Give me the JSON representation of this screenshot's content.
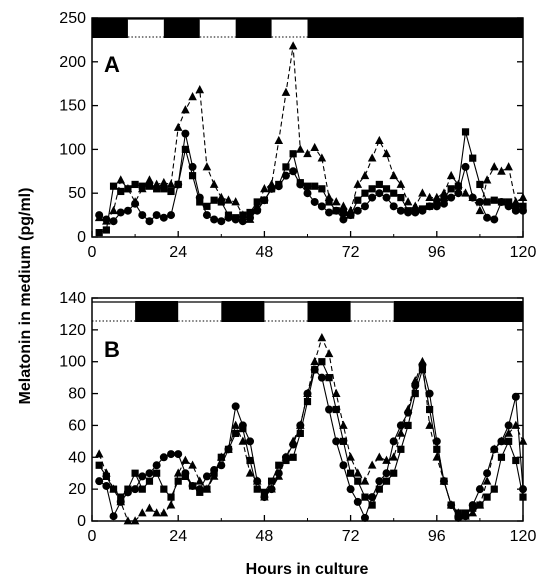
{
  "figure": {
    "ylabel": "Melatonin in medium (pg/ml)",
    "xlabel": "Hours in culture"
  },
  "chart_data": [
    {
      "type": "line",
      "panel": "A",
      "xlim": [
        0,
        120
      ],
      "ylim": [
        0,
        250
      ],
      "x_ticks": [
        0,
        24,
        48,
        72,
        96,
        120
      ],
      "y_ticks": [
        0,
        50,
        100,
        150,
        200,
        250
      ],
      "light_dark_bar": [
        {
          "from": 0,
          "to": 10,
          "state": "dark"
        },
        {
          "from": 10,
          "to": 20,
          "state": "light"
        },
        {
          "from": 20,
          "to": 30,
          "state": "dark"
        },
        {
          "from": 30,
          "to": 40,
          "state": "light"
        },
        {
          "from": 40,
          "to": 50,
          "state": "dark"
        },
        {
          "from": 50,
          "to": 60,
          "state": "light"
        },
        {
          "from": 60,
          "to": 120,
          "state": "dark"
        }
      ],
      "series": [
        {
          "marker": "triangle",
          "dash": true,
          "x": [
            2,
            4,
            6,
            8,
            10,
            12,
            14,
            16,
            18,
            20,
            22,
            24,
            26,
            28,
            30,
            32,
            34,
            36,
            38,
            40,
            42,
            44,
            46,
            48,
            50,
            52,
            54,
            56,
            58,
            60,
            62,
            64,
            66,
            68,
            70,
            72,
            74,
            76,
            78,
            80,
            82,
            84,
            86,
            88,
            90,
            92,
            94,
            96,
            98,
            100,
            102,
            104,
            106,
            108,
            110,
            112,
            114,
            116,
            118,
            120
          ],
          "y": [
            22,
            18,
            30,
            65,
            55,
            40,
            55,
            65,
            60,
            62,
            60,
            125,
            145,
            160,
            168,
            80,
            60,
            45,
            42,
            40,
            25,
            20,
            35,
            55,
            60,
            110,
            165,
            218,
            100,
            95,
            102,
            90,
            45,
            40,
            35,
            30,
            60,
            70,
            90,
            110,
            95,
            70,
            60,
            40,
            35,
            50,
            45,
            45,
            50,
            70,
            60,
            50,
            45,
            30,
            65,
            80,
            75,
            80,
            40,
            45
          ]
        },
        {
          "marker": "square",
          "dash": false,
          "x": [
            2,
            4,
            6,
            8,
            10,
            12,
            14,
            16,
            18,
            20,
            22,
            24,
            26,
            28,
            30,
            32,
            34,
            36,
            38,
            40,
            42,
            44,
            46,
            48,
            50,
            52,
            54,
            56,
            58,
            60,
            62,
            64,
            66,
            68,
            70,
            72,
            74,
            76,
            78,
            80,
            82,
            84,
            86,
            88,
            90,
            92,
            94,
            96,
            98,
            100,
            102,
            104,
            106,
            108,
            110,
            112,
            114,
            116,
            118,
            120
          ],
          "y": [
            5,
            8,
            58,
            52,
            55,
            60,
            58,
            58,
            55,
            55,
            52,
            60,
            100,
            70,
            40,
            35,
            42,
            40,
            25,
            22,
            25,
            28,
            40,
            42,
            55,
            60,
            80,
            95,
            62,
            58,
            58,
            55,
            40,
            30,
            28,
            25,
            42,
            50,
            55,
            60,
            55,
            50,
            45,
            30,
            30,
            32,
            35,
            40,
            45,
            55,
            58,
            120,
            90,
            60,
            40,
            42,
            40,
            40,
            35,
            35
          ]
        },
        {
          "marker": "circle",
          "dash": false,
          "x": [
            2,
            4,
            6,
            8,
            10,
            12,
            14,
            16,
            18,
            20,
            22,
            24,
            26,
            28,
            30,
            32,
            34,
            36,
            38,
            40,
            42,
            44,
            46,
            48,
            50,
            52,
            54,
            56,
            58,
            60,
            62,
            64,
            66,
            68,
            70,
            72,
            74,
            76,
            78,
            80,
            82,
            84,
            86,
            88,
            90,
            92,
            94,
            96,
            98,
            100,
            102,
            104,
            106,
            108,
            110,
            112,
            114,
            116,
            118,
            120
          ],
          "y": [
            25,
            20,
            18,
            28,
            30,
            38,
            25,
            18,
            25,
            22,
            25,
            60,
            118,
            80,
            45,
            25,
            20,
            18,
            22,
            20,
            18,
            22,
            30,
            42,
            55,
            58,
            70,
            75,
            60,
            50,
            40,
            35,
            28,
            30,
            20,
            25,
            30,
            35,
            45,
            50,
            45,
            35,
            30,
            28,
            28,
            30,
            35,
            35,
            38,
            45,
            50,
            80,
            45,
            40,
            22,
            20,
            40,
            35,
            30,
            30
          ]
        }
      ]
    },
    {
      "type": "line",
      "panel": "B",
      "xlim": [
        0,
        120
      ],
      "ylim": [
        0,
        140
      ],
      "x_ticks": [
        0,
        24,
        48,
        72,
        96,
        120
      ],
      "y_ticks": [
        0,
        20,
        40,
        60,
        80,
        100,
        120,
        140
      ],
      "light_dark_bar": [
        {
          "from": 0,
          "to": 12,
          "state": "light"
        },
        {
          "from": 12,
          "to": 24,
          "state": "dark"
        },
        {
          "from": 24,
          "to": 36,
          "state": "light"
        },
        {
          "from": 36,
          "to": 48,
          "state": "dark"
        },
        {
          "from": 48,
          "to": 60,
          "state": "light"
        },
        {
          "from": 60,
          "to": 72,
          "state": "dark"
        },
        {
          "from": 72,
          "to": 84,
          "state": "light"
        },
        {
          "from": 84,
          "to": 120,
          "state": "dark"
        }
      ],
      "series": [
        {
          "marker": "triangle",
          "dash": true,
          "x": [
            2,
            4,
            6,
            8,
            10,
            12,
            14,
            16,
            18,
            20,
            22,
            24,
            26,
            28,
            30,
            32,
            34,
            36,
            38,
            40,
            42,
            44,
            46,
            48,
            50,
            52,
            54,
            56,
            58,
            60,
            62,
            64,
            66,
            68,
            70,
            72,
            74,
            76,
            78,
            80,
            82,
            84,
            86,
            88,
            90,
            92,
            94,
            96,
            98,
            100,
            102,
            104,
            106,
            108,
            110,
            112,
            114,
            116,
            118,
            120
          ],
          "y": [
            42,
            30,
            20,
            12,
            0,
            0,
            5,
            8,
            5,
            5,
            10,
            30,
            38,
            35,
            25,
            20,
            28,
            40,
            45,
            60,
            50,
            30,
            25,
            15,
            20,
            28,
            40,
            50,
            60,
            80,
            100,
            115,
            105,
            80,
            60,
            40,
            30,
            25,
            35,
            40,
            38,
            40,
            55,
            70,
            88,
            100,
            60,
            40,
            25,
            10,
            5,
            3,
            5,
            10,
            25,
            45,
            50,
            55,
            60,
            50
          ]
        },
        {
          "marker": "square",
          "dash": false,
          "x": [
            2,
            4,
            6,
            8,
            10,
            12,
            14,
            16,
            18,
            20,
            22,
            24,
            26,
            28,
            30,
            32,
            34,
            36,
            38,
            40,
            42,
            44,
            46,
            48,
            50,
            52,
            54,
            56,
            58,
            60,
            62,
            64,
            66,
            68,
            70,
            72,
            74,
            76,
            78,
            80,
            82,
            84,
            86,
            88,
            90,
            92,
            94,
            96,
            98,
            100,
            102,
            104,
            106,
            108,
            110,
            112,
            114,
            116,
            118,
            120
          ],
          "y": [
            35,
            28,
            20,
            15,
            20,
            30,
            20,
            25,
            30,
            20,
            15,
            25,
            28,
            22,
            18,
            20,
            30,
            40,
            45,
            55,
            58,
            38,
            20,
            18,
            25,
            35,
            38,
            40,
            55,
            75,
            95,
            100,
            90,
            70,
            50,
            30,
            25,
            15,
            10,
            20,
            25,
            30,
            45,
            60,
            80,
            95,
            70,
            45,
            25,
            10,
            5,
            5,
            8,
            10,
            15,
            20,
            40,
            50,
            38,
            15
          ]
        },
        {
          "marker": "circle",
          "dash": false,
          "x": [
            2,
            4,
            6,
            8,
            10,
            12,
            14,
            16,
            18,
            20,
            22,
            24,
            26,
            28,
            30,
            32,
            34,
            36,
            38,
            40,
            42,
            44,
            46,
            48,
            50,
            52,
            54,
            56,
            58,
            60,
            62,
            64,
            66,
            68,
            70,
            72,
            74,
            76,
            78,
            80,
            82,
            84,
            86,
            88,
            90,
            92,
            94,
            96,
            98,
            100,
            102,
            104,
            106,
            108,
            110,
            112,
            114,
            116,
            118,
            120
          ],
          "y": [
            25,
            22,
            3,
            12,
            18,
            20,
            28,
            30,
            35,
            40,
            42,
            42,
            30,
            22,
            20,
            28,
            32,
            35,
            45,
            72,
            60,
            50,
            25,
            15,
            20,
            30,
            40,
            48,
            60,
            80,
            95,
            90,
            70,
            50,
            35,
            20,
            12,
            2,
            15,
            25,
            30,
            50,
            60,
            68,
            85,
            98,
            80,
            50,
            25,
            10,
            2,
            3,
            10,
            20,
            30,
            45,
            50,
            60,
            78,
            20
          ]
        }
      ]
    }
  ]
}
